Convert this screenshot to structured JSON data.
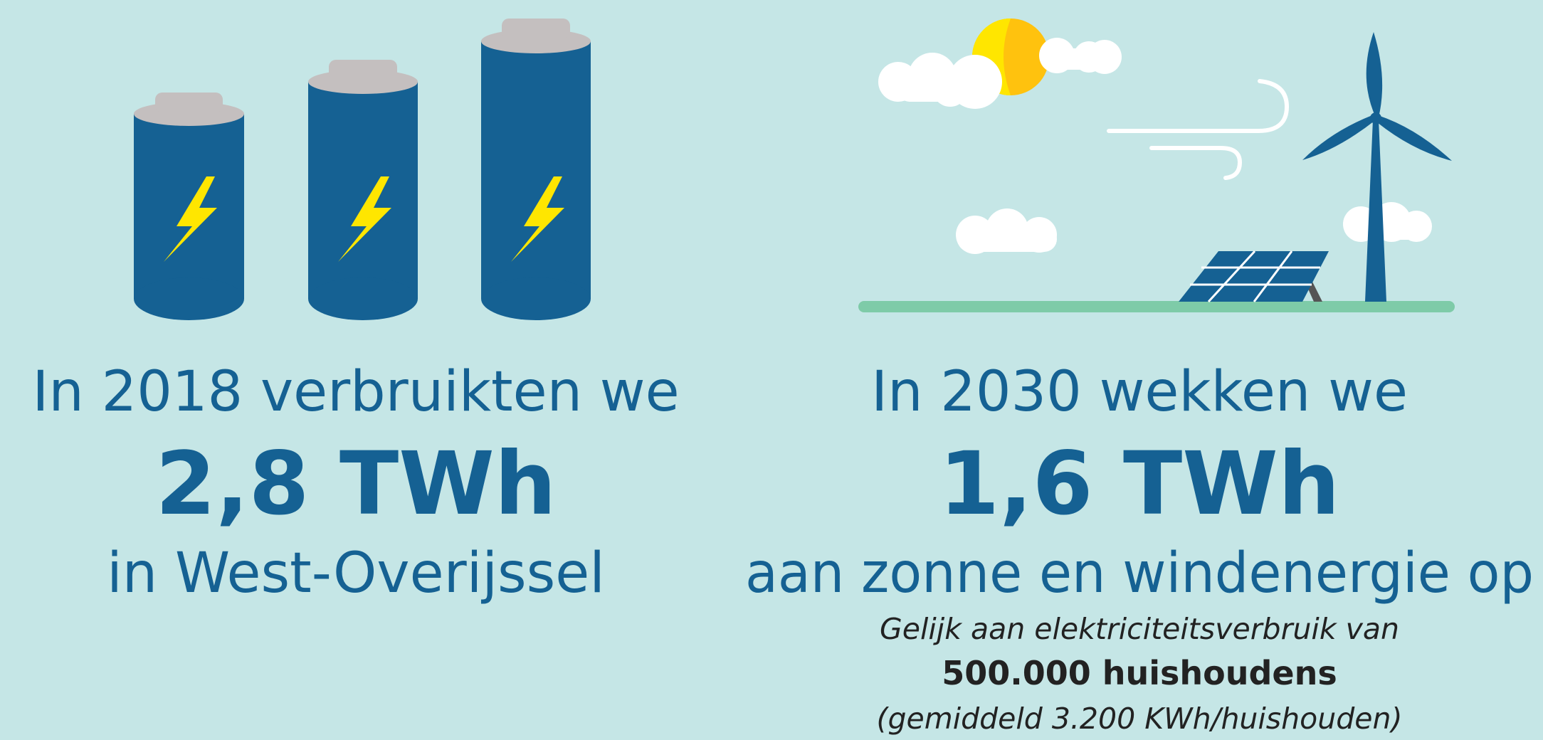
{
  "left": {
    "intro": "In 2018 verbruikten we",
    "amount": "2,8 TWh",
    "place": "in West-Overijssel"
  },
  "right": {
    "intro": "In 2030 wekken we",
    "amount": "1,6 TWh",
    "detail": "aan zonne en windenergie op",
    "note": "Gelijk aan elektriciteitsverbruik van",
    "households": "500.000 huishoudens",
    "average": "(gemiddeld 3.200 KWh/huishouden)"
  }
}
